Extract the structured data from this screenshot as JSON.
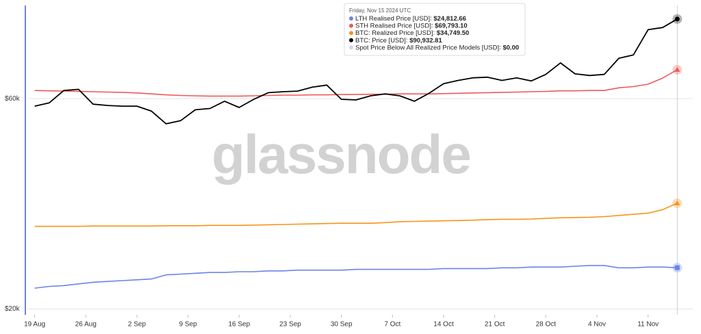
{
  "chart_data": {
    "type": "line",
    "watermark": "glassnode",
    "x": [
      "2024-08-19",
      "2024-08-21",
      "2024-08-23",
      "2024-08-25",
      "2024-08-27",
      "2024-08-29",
      "2024-08-31",
      "2024-09-02",
      "2024-09-04",
      "2024-09-06",
      "2024-09-08",
      "2024-09-10",
      "2024-09-12",
      "2024-09-14",
      "2024-09-16",
      "2024-09-18",
      "2024-09-20",
      "2024-09-22",
      "2024-09-24",
      "2024-09-26",
      "2024-09-28",
      "2024-09-30",
      "2024-10-02",
      "2024-10-04",
      "2024-10-06",
      "2024-10-08",
      "2024-10-10",
      "2024-10-12",
      "2024-10-14",
      "2024-10-16",
      "2024-10-18",
      "2024-10-20",
      "2024-10-22",
      "2024-10-24",
      "2024-10-26",
      "2024-10-28",
      "2024-10-30",
      "2024-11-01",
      "2024-11-03",
      "2024-11-05",
      "2024-11-07",
      "2024-11-09",
      "2024-11-11",
      "2024-11-13",
      "2024-11-15"
    ],
    "xlim": [
      "2024-08-18",
      "2024-11-16"
    ],
    "xticks": [
      {
        "value": "2024-08-19",
        "label": "19 Aug"
      },
      {
        "value": "2024-08-26",
        "label": "26 Aug"
      },
      {
        "value": "2024-09-02",
        "label": "2 Sep"
      },
      {
        "value": "2024-09-09",
        "label": "9 Sep"
      },
      {
        "value": "2024-09-16",
        "label": "16 Sep"
      },
      {
        "value": "2024-09-23",
        "label": "23 Sep"
      },
      {
        "value": "2024-09-30",
        "label": "30 Sep"
      },
      {
        "value": "2024-10-07",
        "label": "7 Oct"
      },
      {
        "value": "2024-10-14",
        "label": "14 Oct"
      },
      {
        "value": "2024-10-21",
        "label": "21 Oct"
      },
      {
        "value": "2024-10-28",
        "label": "28 Oct"
      },
      {
        "value": "2024-11-04",
        "label": "4 Nov"
      },
      {
        "value": "2024-11-11",
        "label": "11 Nov"
      }
    ],
    "ylim": [
      19400,
      97600
    ],
    "yticks": [
      {
        "value": 20000,
        "label": "$20k"
      },
      {
        "value": 60000,
        "label": "$60k"
      }
    ],
    "log_scale": true,
    "grid": true,
    "series": [
      {
        "name": "LTH Realised Price [USD]",
        "color": "#6b83e6",
        "marker": "square",
        "values": [
          22300,
          22500,
          22600,
          22800,
          23000,
          23100,
          23200,
          23300,
          23400,
          23900,
          24000,
          24100,
          24200,
          24200,
          24300,
          24300,
          24400,
          24400,
          24500,
          24500,
          24500,
          24500,
          24600,
          24600,
          24600,
          24600,
          24600,
          24600,
          24700,
          24700,
          24700,
          24700,
          24800,
          24800,
          24900,
          24900,
          24900,
          25000,
          25100,
          25100,
          24800,
          24800,
          24900,
          24900,
          24812.66
        ]
      },
      {
        "name": "STH Realised Price [USD]",
        "color": "#f0585a",
        "marker": "triangle",
        "values": [
          62600,
          62500,
          62400,
          62300,
          62200,
          62100,
          62000,
          61800,
          61500,
          61200,
          61000,
          60900,
          60800,
          60800,
          60800,
          60900,
          61000,
          61100,
          61100,
          61200,
          61200,
          61300,
          61300,
          61400,
          61400,
          61500,
          61500,
          61500,
          61600,
          61700,
          61800,
          61900,
          62000,
          62100,
          62200,
          62300,
          62500,
          62500,
          62600,
          62600,
          63500,
          63900,
          64700,
          66800,
          69793.1
        ]
      },
      {
        "name": "BTC: Realized Price [USD]",
        "color": "#f7931a",
        "marker": "triangle",
        "values": [
          30800,
          30800,
          30800,
          30800,
          30850,
          30850,
          30850,
          30850,
          30850,
          30900,
          30900,
          30900,
          30950,
          30950,
          30950,
          31000,
          31050,
          31100,
          31150,
          31200,
          31250,
          31300,
          31300,
          31300,
          31400,
          31550,
          31600,
          31650,
          31700,
          31750,
          31800,
          31900,
          31950,
          31950,
          32000,
          32100,
          32200,
          32250,
          32300,
          32400,
          32600,
          32800,
          33000,
          33600,
          34749.5
        ]
      },
      {
        "name": "BTC: Price [USD]",
        "color": "#000000",
        "marker": "circle",
        "values": [
          57700,
          58700,
          62600,
          63000,
          58300,
          57900,
          57700,
          57700,
          56200,
          52600,
          53500,
          56600,
          57000,
          59200,
          57300,
          59800,
          61900,
          62200,
          62400,
          63700,
          64400,
          59800,
          59600,
          60900,
          61500,
          60900,
          59200,
          61700,
          64900,
          66000,
          66900,
          67100,
          66000,
          66900,
          65800,
          68100,
          72300,
          68300,
          67700,
          68100,
          74100,
          75400,
          86000,
          87000,
          90932.81
        ]
      },
      {
        "name": "Spot Price Below All Realized Price Models [USD]",
        "color": "#d9d0f0"
      }
    ],
    "tooltip": {
      "title": "Friday, Nov 15 2024 UTC",
      "value_labels": [
        "$24,812.66",
        "$69,793.10",
        "$34,749.50",
        "$90,932.81",
        "$0.00"
      ]
    }
  }
}
